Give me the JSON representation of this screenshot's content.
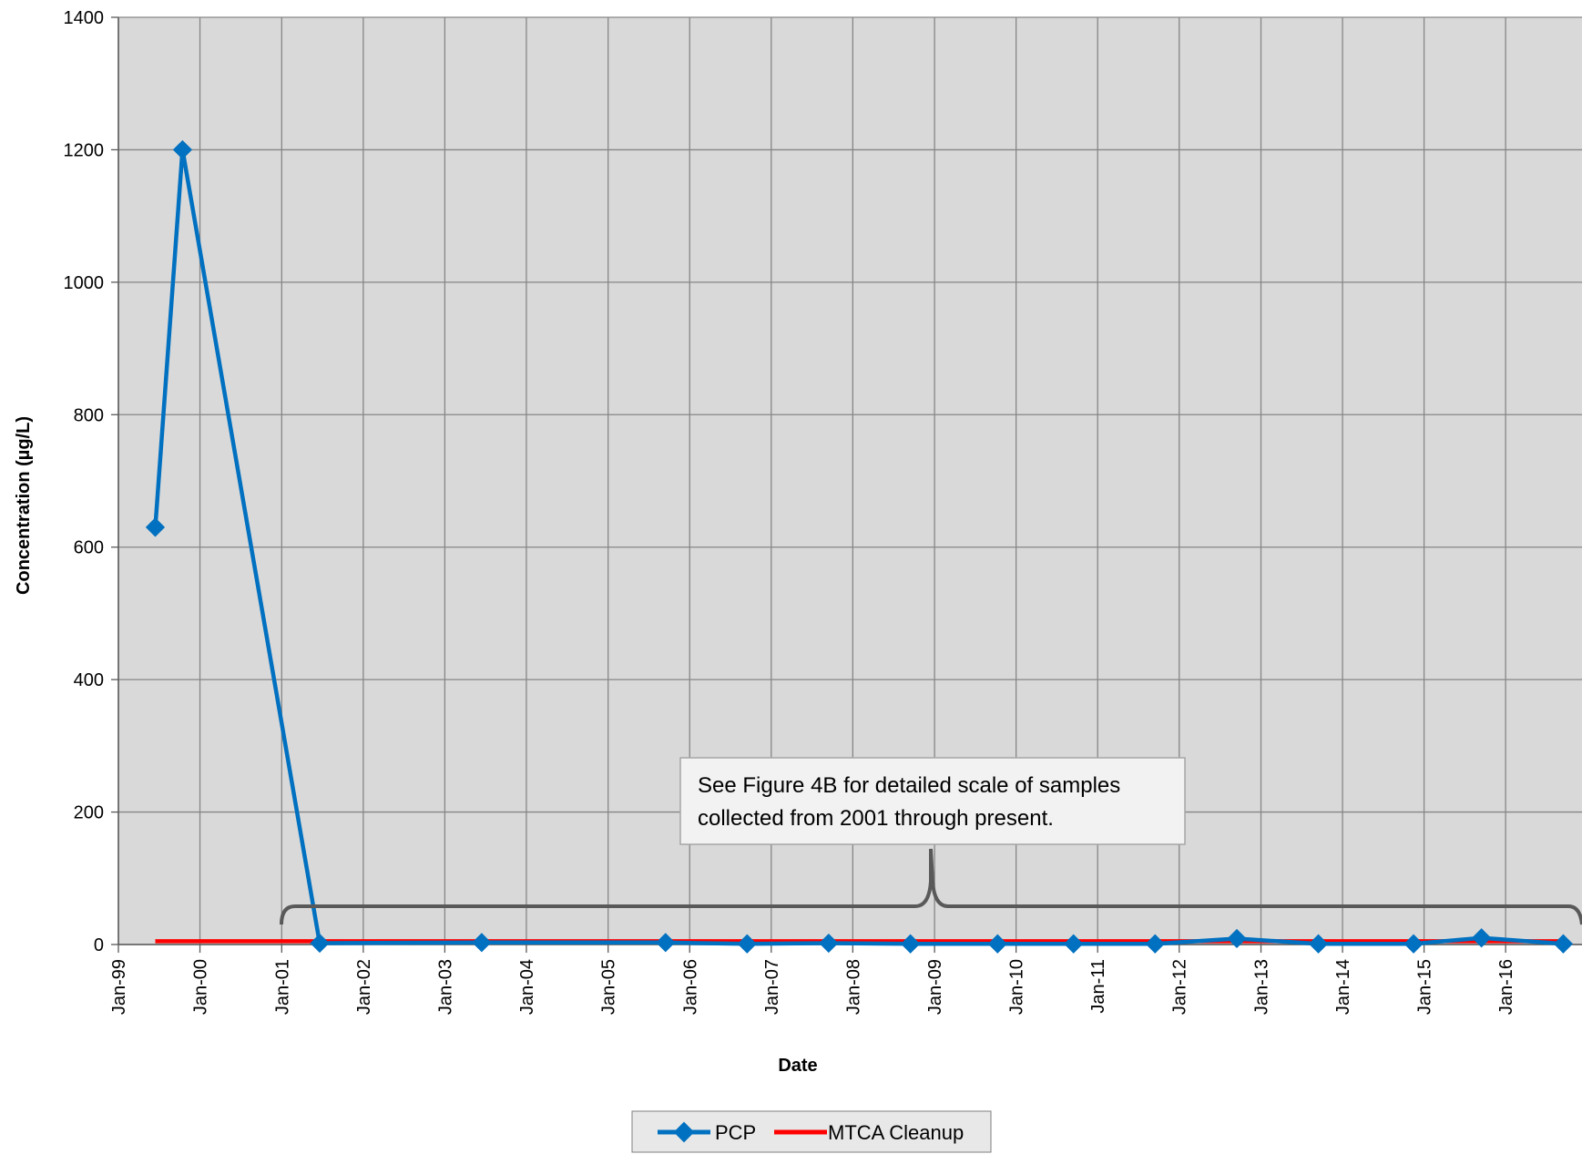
{
  "chart_data": {
    "type": "line",
    "xlabel": "Date",
    "ylabel": "Concentration (µg/L)",
    "ylim": [
      0,
      1400
    ],
    "yticks": [
      0,
      200,
      400,
      600,
      800,
      1000,
      1200,
      1400
    ],
    "xlim": [
      "1999-01-01",
      "2016-12-31"
    ],
    "xticks": [
      {
        "date": "1999-01-01",
        "label": "Jan-99"
      },
      {
        "date": "2000-01-01",
        "label": "Jan-00"
      },
      {
        "date": "2001-01-01",
        "label": "Jan-01"
      },
      {
        "date": "2002-01-01",
        "label": "Jan-02"
      },
      {
        "date": "2003-01-01",
        "label": "Jan-03"
      },
      {
        "date": "2004-01-01",
        "label": "Jan-04"
      },
      {
        "date": "2005-01-01",
        "label": "Jan-05"
      },
      {
        "date": "2006-01-01",
        "label": "Jan-06"
      },
      {
        "date": "2007-01-01",
        "label": "Jan-07"
      },
      {
        "date": "2008-01-01",
        "label": "Jan-08"
      },
      {
        "date": "2009-01-01",
        "label": "Jan-09"
      },
      {
        "date": "2010-01-01",
        "label": "Jan-10"
      },
      {
        "date": "2011-01-01",
        "label": "Jan-11"
      },
      {
        "date": "2012-01-01",
        "label": "Jan-12"
      },
      {
        "date": "2013-01-01",
        "label": "Jan-13"
      },
      {
        "date": "2014-01-01",
        "label": "Jan-14"
      },
      {
        "date": "2015-01-01",
        "label": "Jan-15"
      },
      {
        "date": "2016-01-01",
        "label": "Jan-16"
      }
    ],
    "grid": true,
    "legend_position": "bottom",
    "series": [
      {
        "name": "PCP",
        "color": "#0070C0",
        "marker": "diamond",
        "points": [
          {
            "x": "1999-06-15",
            "y": 630
          },
          {
            "x": "1999-10-15",
            "y": 1200
          },
          {
            "x": "2001-06-20",
            "y": 2
          },
          {
            "x": "2003-06-15",
            "y": 3
          },
          {
            "x": "2005-09-15",
            "y": 3
          },
          {
            "x": "2006-09-15",
            "y": 1
          },
          {
            "x": "2007-09-15",
            "y": 2
          },
          {
            "x": "2008-09-15",
            "y": 1
          },
          {
            "x": "2009-10-10",
            "y": 1
          },
          {
            "x": "2010-09-15",
            "y": 1
          },
          {
            "x": "2011-09-15",
            "y": 1
          },
          {
            "x": "2012-09-15",
            "y": 9
          },
          {
            "x": "2013-09-15",
            "y": 1
          },
          {
            "x": "2014-11-15",
            "y": 1
          },
          {
            "x": "2015-09-15",
            "y": 10
          },
          {
            "x": "2016-09-15",
            "y": 1
          }
        ]
      },
      {
        "name": "MTCA Cleanup",
        "color": "#FF0000",
        "marker": "none",
        "points": [
          {
            "x": "1999-06-15",
            "y": 5
          },
          {
            "x": "2016-09-15",
            "y": 5
          }
        ]
      }
    ],
    "annotation": {
      "lines": [
        "See Figure 4B for detailed scale of samples",
        "collected from 2001 through present."
      ]
    }
  },
  "colors": {
    "plot_background": "#D9D9D9",
    "gridline": "#868686",
    "brace": "#595959"
  }
}
